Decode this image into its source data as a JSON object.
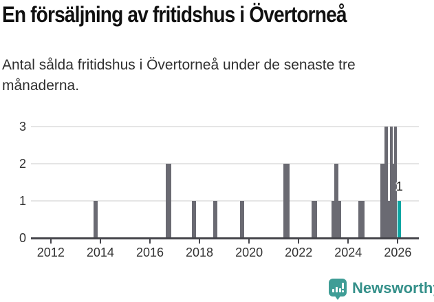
{
  "header": {
    "title": "En försäljning av fritidshus i Övertorneå",
    "subtitle": "Antal sålda fritidshus i Övertorneå under de senaste tre månaderna.",
    "subtitle_lines": [
      "Antal sålda fritidshus i Övertorneå under de senaste tre",
      "månaderna."
    ]
  },
  "footer": {
    "brand": "Newsworthy",
    "logo_icon": "bar-chart-speech-bubble-icon"
  },
  "colors": {
    "bar": "#6a6a72",
    "highlight": "#0ca6a3",
    "gridline": "#e5e5e5",
    "axis": "#45454b",
    "tick_text": "#333333",
    "brand": "#35908a",
    "logo_bg": "#3f9d96"
  },
  "chart_data": {
    "type": "bar",
    "title": "En försäljning av fritidshus i Övertorneå",
    "xlabel": "",
    "ylabel": "",
    "x_ticks": [
      2012,
      2014,
      2016,
      2018,
      2020,
      2022,
      2024,
      2026
    ],
    "x_range": [
      2011.2,
      2026.85
    ],
    "y_ticks": [
      0,
      1,
      2,
      3
    ],
    "y_range": [
      0,
      3
    ],
    "grid": true,
    "bars": [
      {
        "year": 2013.8,
        "value": 1,
        "width_years": 0.17
      },
      {
        "year": 2016.74,
        "value": 2,
        "width_years": 0.22
      },
      {
        "year": 2017.77,
        "value": 1,
        "width_years": 0.17
      },
      {
        "year": 2018.63,
        "value": 1,
        "width_years": 0.17
      },
      {
        "year": 2019.71,
        "value": 1,
        "width_years": 0.17
      },
      {
        "year": 2021.5,
        "value": 2,
        "width_years": 0.25
      },
      {
        "year": 2022.63,
        "value": 1,
        "width_years": 0.22
      },
      {
        "year": 2023.51,
        "value": 1,
        "width_years": 0.39
      },
      {
        "year": 2023.51,
        "value": 2,
        "width_years": 0.17
      },
      {
        "year": 2024.54,
        "value": 1,
        "width_years": 0.25
      },
      {
        "year": 2025.39,
        "value": 2,
        "width_years": 0.17
      },
      {
        "year": 2025.54,
        "value": 3,
        "width_years": 0.14
      },
      {
        "year": 2025.65,
        "value": 1,
        "width_years": 0.08
      },
      {
        "year": 2025.75,
        "value": 3,
        "width_years": 0.11
      },
      {
        "year": 2025.83,
        "value": 2,
        "width_years": 0.06
      },
      {
        "year": 2025.92,
        "value": 3,
        "width_years": 0.11
      },
      {
        "year": 2026.07,
        "value": 1,
        "width_years": 0.14,
        "highlight": true,
        "label": "1"
      }
    ]
  }
}
